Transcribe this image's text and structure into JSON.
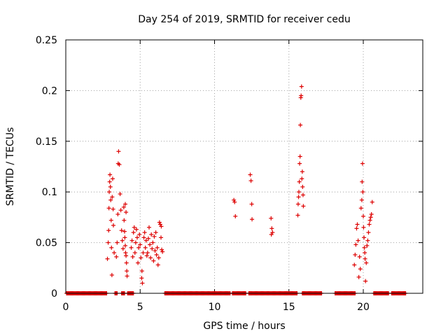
{
  "chart_data": {
    "type": "scatter",
    "title": "Day 254 of 2019, SRMTID for receiver cedu",
    "xlabel": "GPS time / hours",
    "ylabel": "SRMTID / TECUs",
    "xlim": [
      0,
      24.0
    ],
    "ylim": [
      0,
      0.25
    ],
    "x_ticks": [
      0,
      5,
      10,
      15,
      20
    ],
    "x_tick_labels": [
      "0",
      "5",
      "10",
      "15",
      "20"
    ],
    "y_ticks": [
      0,
      0.05,
      0.1,
      0.15,
      0.2,
      0.25
    ],
    "y_tick_labels": [
      "0",
      "0.05",
      "0.1",
      "0.15",
      "0.2",
      "0.25"
    ],
    "grid": true,
    "marker": "+",
    "color": "#dd0000",
    "series": [
      {
        "name": "SRMTID",
        "points": [
          [
            2.8,
            0.034
          ],
          [
            2.85,
            0.05
          ],
          [
            2.88,
            0.062
          ],
          [
            2.9,
            0.084
          ],
          [
            2.92,
            0.1
          ],
          [
            2.95,
            0.11
          ],
          [
            2.97,
            0.117
          ],
          [
            3.0,
            0.105
          ],
          [
            3.02,
            0.092
          ],
          [
            3.05,
            0.072
          ],
          [
            3.07,
            0.045
          ],
          [
            3.1,
            0.018
          ],
          [
            3.12,
            0.095
          ],
          [
            3.15,
            0.113
          ],
          [
            3.18,
            0.083
          ],
          [
            3.2,
            0.067
          ],
          [
            3.25,
            0.04
          ],
          [
            3.4,
            0.036
          ],
          [
            3.45,
            0.05
          ],
          [
            3.5,
            0.078
          ],
          [
            3.52,
            0.128
          ],
          [
            3.55,
            0.14
          ],
          [
            3.6,
            0.127
          ],
          [
            3.65,
            0.098
          ],
          [
            3.7,
            0.082
          ],
          [
            3.75,
            0.062
          ],
          [
            3.8,
            0.052
          ],
          [
            3.85,
            0.044
          ],
          [
            3.9,
            0.085
          ],
          [
            3.92,
            0.072
          ],
          [
            3.95,
            0.061
          ],
          [
            3.97,
            0.055
          ],
          [
            4.0,
            0.047
          ],
          [
            4.02,
            0.04
          ],
          [
            4.05,
            0.037
          ],
          [
            4.08,
            0.03
          ],
          [
            4.1,
            0.022
          ],
          [
            4.12,
            0.017
          ],
          [
            4.0,
            0.088
          ],
          [
            4.05,
            0.08
          ],
          [
            4.4,
            0.045
          ],
          [
            4.45,
            0.052
          ],
          [
            4.5,
            0.036
          ],
          [
            4.55,
            0.06
          ],
          [
            4.6,
            0.065
          ],
          [
            4.65,
            0.04
          ],
          [
            4.7,
            0.05
          ],
          [
            4.75,
            0.063
          ],
          [
            4.8,
            0.055
          ],
          [
            4.85,
            0.03
          ],
          [
            4.9,
            0.045
          ],
          [
            4.95,
            0.058
          ],
          [
            5.0,
            0.048
          ],
          [
            5.05,
            0.035
          ],
          [
            5.1,
            0.015
          ],
          [
            5.12,
            0.022
          ],
          [
            5.15,
            0.01
          ],
          [
            5.2,
            0.04
          ],
          [
            5.25,
            0.055
          ],
          [
            5.3,
            0.06
          ],
          [
            5.35,
            0.045
          ],
          [
            5.4,
            0.052
          ],
          [
            5.45,
            0.037
          ],
          [
            5.5,
            0.04
          ],
          [
            5.55,
            0.054
          ],
          [
            5.6,
            0.065
          ],
          [
            5.65,
            0.048
          ],
          [
            5.7,
            0.035
          ],
          [
            5.75,
            0.058
          ],
          [
            5.8,
            0.044
          ],
          [
            5.85,
            0.05
          ],
          [
            5.9,
            0.032
          ],
          [
            5.95,
            0.056
          ],
          [
            6.0,
            0.042
          ],
          [
            6.05,
            0.06
          ],
          [
            6.1,
            0.038
          ],
          [
            6.15,
            0.045
          ],
          [
            6.2,
            0.028
          ],
          [
            6.25,
            0.035
          ],
          [
            6.3,
            0.07
          ],
          [
            6.35,
            0.068
          ],
          [
            6.4,
            0.055
          ],
          [
            6.45,
            0.043
          ],
          [
            6.5,
            0.041
          ],
          [
            6.42,
            0.066
          ],
          [
            11.3,
            0.092
          ],
          [
            11.35,
            0.09
          ],
          [
            11.4,
            0.076
          ],
          [
            12.4,
            0.117
          ],
          [
            12.45,
            0.111
          ],
          [
            12.5,
            0.088
          ],
          [
            12.52,
            0.073
          ],
          [
            13.8,
            0.074
          ],
          [
            13.85,
            0.064
          ],
          [
            13.9,
            0.06
          ],
          [
            13.82,
            0.058
          ],
          [
            15.6,
            0.077
          ],
          [
            15.62,
            0.088
          ],
          [
            15.65,
            0.095
          ],
          [
            15.67,
            0.1
          ],
          [
            15.7,
            0.11
          ],
          [
            15.72,
            0.128
          ],
          [
            15.75,
            0.135
          ],
          [
            15.77,
            0.166
          ],
          [
            15.8,
            0.193
          ],
          [
            15.82,
            0.195
          ],
          [
            15.85,
            0.204
          ],
          [
            15.87,
            0.113
          ],
          [
            15.9,
            0.12
          ],
          [
            15.92,
            0.105
          ],
          [
            15.95,
            0.097
          ],
          [
            15.97,
            0.086
          ],
          [
            19.4,
            0.028
          ],
          [
            19.45,
            0.038
          ],
          [
            19.5,
            0.048
          ],
          [
            19.55,
            0.064
          ],
          [
            19.6,
            0.068
          ],
          [
            19.65,
            0.052
          ],
          [
            19.7,
            0.016
          ],
          [
            19.75,
            0.036
          ],
          [
            19.8,
            0.024
          ],
          [
            19.85,
            0.084
          ],
          [
            19.9,
            0.092
          ],
          [
            19.92,
            0.11
          ],
          [
            19.95,
            0.128
          ],
          [
            19.97,
            0.1
          ],
          [
            20.0,
            0.076
          ],
          [
            20.02,
            0.065
          ],
          [
            20.05,
            0.055
          ],
          [
            20.07,
            0.045
          ],
          [
            20.1,
            0.04
          ],
          [
            20.12,
            0.034
          ],
          [
            20.15,
            0.012
          ],
          [
            20.2,
            0.03
          ],
          [
            20.25,
            0.047
          ],
          [
            20.3,
            0.052
          ],
          [
            20.35,
            0.06
          ],
          [
            20.4,
            0.068
          ],
          [
            20.45,
            0.072
          ],
          [
            20.5,
            0.075
          ],
          [
            20.55,
            0.078
          ],
          [
            20.6,
            0.09
          ]
        ]
      }
    ],
    "baseline_segments_hours": [
      [
        0.05,
        2.75
      ],
      [
        3.3,
        3.45
      ],
      [
        3.75,
        3.95
      ],
      [
        4.15,
        4.55
      ],
      [
        6.65,
        11.05
      ],
      [
        11.2,
        12.1
      ],
      [
        12.3,
        15.55
      ],
      [
        15.9,
        17.2
      ],
      [
        18.1,
        19.45
      ],
      [
        20.7,
        21.7
      ],
      [
        21.9,
        22.85
      ]
    ]
  }
}
